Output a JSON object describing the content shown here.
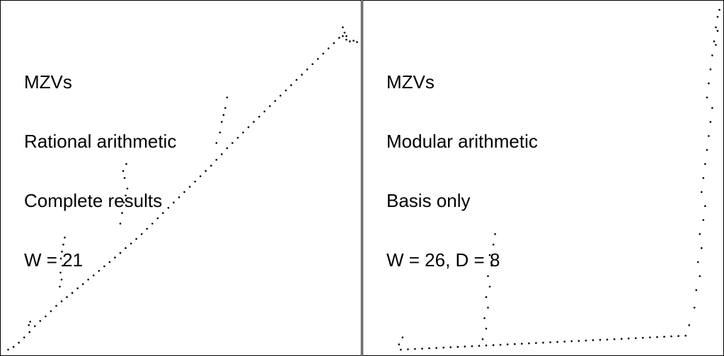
{
  "chart_data": [
    {
      "type": "scatter",
      "title_lines": [
        "MZVs",
        "Rational arithmetic",
        "Complete results",
        "W = 21"
      ],
      "xlabel": "",
      "ylabel": "",
      "grid": false,
      "marker_color": "#000000",
      "points": [
        [
          0.015,
          0.01
        ],
        [
          0.03,
          0.018
        ],
        [
          0.045,
          0.03
        ],
        [
          0.06,
          0.045
        ],
        [
          0.075,
          0.06
        ],
        [
          0.09,
          0.077
        ],
        [
          0.105,
          0.092
        ],
        [
          0.12,
          0.105
        ],
        [
          0.135,
          0.12
        ],
        [
          0.15,
          0.135
        ],
        [
          0.165,
          0.148
        ],
        [
          0.18,
          0.16
        ],
        [
          0.195,
          0.172
        ],
        [
          0.21,
          0.185
        ],
        [
          0.225,
          0.197
        ],
        [
          0.24,
          0.21
        ],
        [
          0.255,
          0.222
        ],
        [
          0.27,
          0.235
        ],
        [
          0.285,
          0.248
        ],
        [
          0.3,
          0.26
        ],
        [
          0.315,
          0.273
        ],
        [
          0.33,
          0.286
        ],
        [
          0.345,
          0.3
        ],
        [
          0.36,
          0.313
        ],
        [
          0.375,
          0.326
        ],
        [
          0.39,
          0.34
        ],
        [
          0.405,
          0.355
        ],
        [
          0.42,
          0.37
        ],
        [
          0.435,
          0.385
        ],
        [
          0.45,
          0.4
        ],
        [
          0.465,
          0.415
        ],
        [
          0.48,
          0.43
        ],
        [
          0.495,
          0.445
        ],
        [
          0.51,
          0.46
        ],
        [
          0.525,
          0.475
        ],
        [
          0.54,
          0.49
        ],
        [
          0.555,
          0.505
        ],
        [
          0.57,
          0.52
        ],
        [
          0.585,
          0.535
        ],
        [
          0.6,
          0.552
        ],
        [
          0.615,
          0.568
        ],
        [
          0.63,
          0.585
        ],
        [
          0.645,
          0.6
        ],
        [
          0.66,
          0.615
        ],
        [
          0.675,
          0.63
        ],
        [
          0.69,
          0.645
        ],
        [
          0.705,
          0.66
        ],
        [
          0.72,
          0.675
        ],
        [
          0.735,
          0.69
        ],
        [
          0.75,
          0.705
        ],
        [
          0.765,
          0.72
        ],
        [
          0.78,
          0.735
        ],
        [
          0.795,
          0.75
        ],
        [
          0.81,
          0.765
        ],
        [
          0.825,
          0.78
        ],
        [
          0.84,
          0.795
        ],
        [
          0.855,
          0.81
        ],
        [
          0.87,
          0.825
        ],
        [
          0.885,
          0.84
        ],
        [
          0.9,
          0.855
        ],
        [
          0.915,
          0.87
        ],
        [
          0.93,
          0.885
        ],
        [
          0.945,
          0.9
        ],
        [
          0.955,
          0.905
        ],
        [
          0.965,
          0.895
        ],
        [
          0.975,
          0.89
        ],
        [
          0.985,
          0.892
        ],
        [
          0.995,
          0.888
        ],
        [
          0.073,
          0.08
        ],
        [
          0.077,
          0.09
        ],
        [
          0.16,
          0.19
        ],
        [
          0.165,
          0.21
        ],
        [
          0.162,
          0.23
        ],
        [
          0.168,
          0.25
        ],
        [
          0.163,
          0.27
        ],
        [
          0.166,
          0.29
        ],
        [
          0.17,
          0.31
        ],
        [
          0.174,
          0.33
        ],
        [
          0.33,
          0.37
        ],
        [
          0.335,
          0.4
        ],
        [
          0.34,
          0.43
        ],
        [
          0.345,
          0.45
        ],
        [
          0.35,
          0.47
        ],
        [
          0.342,
          0.5
        ],
        [
          0.338,
          0.52
        ],
        [
          0.347,
          0.54
        ],
        [
          0.6,
          0.6
        ],
        [
          0.61,
          0.63
        ],
        [
          0.615,
          0.66
        ],
        [
          0.62,
          0.68
        ],
        [
          0.625,
          0.7
        ],
        [
          0.63,
          0.73
        ],
        [
          0.955,
          0.93
        ],
        [
          0.96,
          0.915
        ],
        [
          0.965,
          0.905
        ]
      ]
    },
    {
      "type": "scatter",
      "title_lines": [
        "MZVs",
        "Modular arithmetic",
        "Basis only",
        "W = 26, D = 8"
      ],
      "xlabel": "",
      "ylabel": "",
      "grid": false,
      "marker_color": "#000000",
      "points": [
        [
          0.1,
          0.01
        ],
        [
          0.12,
          0.011
        ],
        [
          0.14,
          0.012
        ],
        [
          0.16,
          0.013
        ],
        [
          0.18,
          0.014
        ],
        [
          0.2,
          0.015
        ],
        [
          0.22,
          0.016
        ],
        [
          0.24,
          0.017
        ],
        [
          0.26,
          0.018
        ],
        [
          0.28,
          0.019
        ],
        [
          0.3,
          0.02
        ],
        [
          0.32,
          0.021
        ],
        [
          0.34,
          0.022
        ],
        [
          0.36,
          0.023
        ],
        [
          0.38,
          0.024
        ],
        [
          0.4,
          0.025
        ],
        [
          0.42,
          0.026
        ],
        [
          0.44,
          0.027
        ],
        [
          0.46,
          0.028
        ],
        [
          0.48,
          0.029
        ],
        [
          0.5,
          0.03
        ],
        [
          0.52,
          0.031
        ],
        [
          0.54,
          0.032
        ],
        [
          0.56,
          0.033
        ],
        [
          0.58,
          0.034
        ],
        [
          0.6,
          0.035
        ],
        [
          0.62,
          0.036
        ],
        [
          0.64,
          0.037
        ],
        [
          0.66,
          0.038
        ],
        [
          0.68,
          0.039
        ],
        [
          0.7,
          0.04
        ],
        [
          0.72,
          0.041
        ],
        [
          0.74,
          0.042
        ],
        [
          0.76,
          0.043
        ],
        [
          0.78,
          0.044
        ],
        [
          0.8,
          0.045
        ],
        [
          0.82,
          0.046
        ],
        [
          0.84,
          0.047
        ],
        [
          0.86,
          0.048
        ],
        [
          0.88,
          0.049
        ],
        [
          0.9,
          0.05
        ],
        [
          0.095,
          0.025
        ],
        [
          0.105,
          0.045
        ],
        [
          0.33,
          0.04
        ],
        [
          0.34,
          0.07
        ],
        [
          0.335,
          0.1
        ],
        [
          0.345,
          0.13
        ],
        [
          0.34,
          0.16
        ],
        [
          0.35,
          0.19
        ],
        [
          0.345,
          0.22
        ],
        [
          0.355,
          0.25
        ],
        [
          0.35,
          0.28
        ],
        [
          0.36,
          0.31
        ],
        [
          0.365,
          0.34
        ],
        [
          0.91,
          0.08
        ],
        [
          0.925,
          0.13
        ],
        [
          0.93,
          0.18
        ],
        [
          0.94,
          0.22
        ],
        [
          0.935,
          0.26
        ],
        [
          0.945,
          0.3
        ],
        [
          0.94,
          0.34
        ],
        [
          0.95,
          0.38
        ],
        [
          0.955,
          0.42
        ],
        [
          0.945,
          0.46
        ],
        [
          0.95,
          0.5
        ],
        [
          0.955,
          0.54
        ],
        [
          0.96,
          0.58
        ],
        [
          0.965,
          0.62
        ],
        [
          0.97,
          0.66
        ],
        [
          0.975,
          0.7
        ],
        [
          0.96,
          0.73
        ],
        [
          0.965,
          0.77
        ],
        [
          0.97,
          0.81
        ],
        [
          0.975,
          0.85
        ],
        [
          0.98,
          0.89
        ],
        [
          0.985,
          0.93
        ],
        [
          0.99,
          0.96
        ],
        [
          0.995,
          0.98
        ],
        [
          0.99,
          0.92
        ],
        [
          0.985,
          0.88
        ]
      ]
    }
  ]
}
